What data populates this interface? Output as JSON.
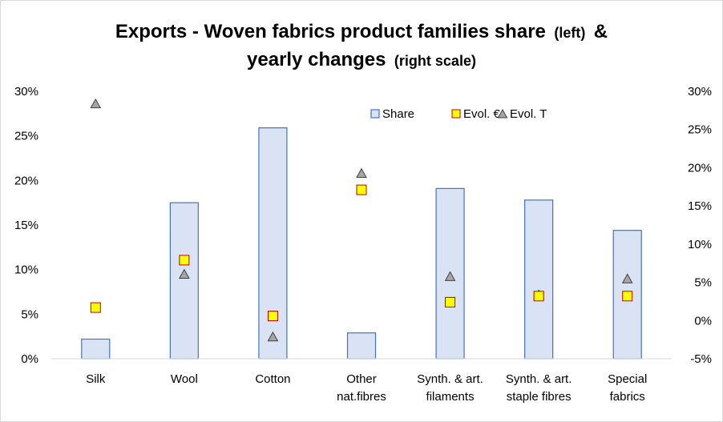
{
  "chart_data": {
    "type": "bar",
    "title_line1": "Exports - Woven fabrics product families share",
    "title_line1_suffix": "(left)",
    "title_line1_end": "&",
    "title_line2": "yearly changes",
    "title_line2_suffix": "(right scale)",
    "categories": [
      [
        "Silk"
      ],
      [
        "Wool"
      ],
      [
        "Cotton"
      ],
      [
        "Other",
        "nat.fibres"
      ],
      [
        "Synth. & art.",
        "filaments"
      ],
      [
        "Synth. & art.",
        "staple fibres"
      ],
      [
        "Special",
        "fabrics"
      ]
    ],
    "series": [
      {
        "name": "Share",
        "type": "bar",
        "axis": "left",
        "values": [
          2.2,
          17.5,
          25.9,
          2.9,
          19.1,
          17.8,
          14.4
        ],
        "fill": "#dae3f3",
        "stroke": "#4472c4"
      },
      {
        "name": "Evol. €",
        "type": "marker-square",
        "axis": "right",
        "values": [
          1.7,
          7.9,
          0.6,
          17.1,
          2.4,
          3.2,
          3.2
        ],
        "fill": "#ffff00",
        "stroke": "#c00000"
      },
      {
        "name": "Evol. T",
        "type": "marker-triangle",
        "axis": "right",
        "values": [
          28.4,
          6.1,
          -2.1,
          19.3,
          5.8,
          3.4,
          5.5
        ],
        "fill": "#a6a6a6",
        "stroke": "#404040"
      }
    ],
    "left_axis": {
      "min": 0,
      "max": 30,
      "step": 5,
      "ticks": [
        "0%",
        "5%",
        "10%",
        "15%",
        "20%",
        "25%",
        "30%"
      ]
    },
    "right_axis": {
      "min": -5,
      "max": 30,
      "step": 5,
      "ticks": [
        "-5%",
        "0%",
        "5%",
        "10%",
        "15%",
        "20%",
        "25%",
        "30%"
      ]
    },
    "legend_position": "top-right",
    "grid": false
  }
}
